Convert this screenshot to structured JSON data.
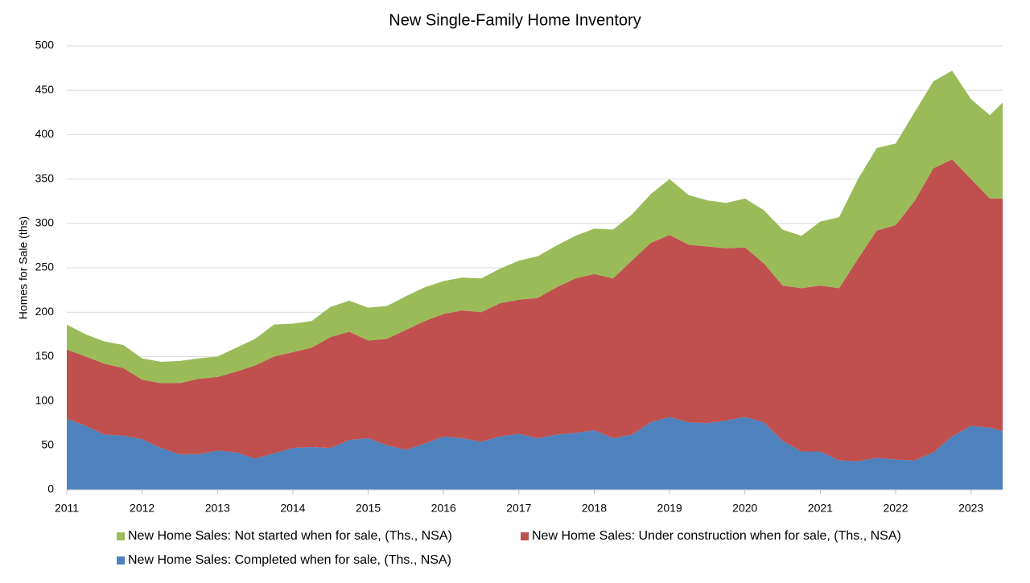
{
  "chart_data": {
    "type": "stacked_area",
    "title": "New Single-Family Home Inventory",
    "y_label": "Homes for Sale (ths)",
    "x": [
      2011,
      2011.25,
      2011.5,
      2011.75,
      2012,
      2012.25,
      2012.5,
      2012.75,
      2013,
      2013.25,
      2013.5,
      2013.75,
      2014,
      2014.25,
      2014.5,
      2014.75,
      2015,
      2015.25,
      2015.5,
      2015.75,
      2016,
      2016.25,
      2016.5,
      2016.75,
      2017,
      2017.25,
      2017.5,
      2017.75,
      2018,
      2018.25,
      2018.5,
      2018.75,
      2019,
      2019.25,
      2019.5,
      2019.75,
      2020,
      2020.25,
      2020.5,
      2020.75,
      2021,
      2021.25,
      2021.5,
      2021.75,
      2022,
      2022.25,
      2022.5,
      2022.75,
      2023,
      2023.25,
      2023.42
    ],
    "series": [
      {
        "name": "New Home Sales: Completed when for sale, (Ths., NSA)",
        "color": "#4f81bd",
        "values": [
          80,
          72,
          62,
          61,
          57,
          47,
          40,
          40,
          44,
          42,
          35,
          41,
          47,
          48,
          47,
          56,
          58,
          50,
          45,
          52,
          60,
          58,
          54,
          60,
          63,
          58,
          62,
          64,
          67,
          58,
          62,
          76,
          82,
          76,
          75,
          78,
          82,
          76,
          55,
          43,
          43,
          33,
          32,
          36,
          34,
          33,
          42,
          60,
          72,
          70,
          66
        ]
      },
      {
        "name": "New Home Sales: Under construction when for sale, (Ths., NSA)",
        "color": "#c0504d",
        "values": [
          78,
          78,
          80,
          76,
          67,
          73,
          80,
          85,
          83,
          91,
          105,
          109,
          108,
          112,
          125,
          122,
          110,
          120,
          135,
          138,
          138,
          144,
          146,
          150,
          151,
          158,
          166,
          174,
          176,
          180,
          196,
          202,
          205,
          200,
          199,
          194,
          191,
          179,
          175,
          184,
          187,
          194,
          228,
          256,
          264,
          292,
          320,
          312,
          278,
          258,
          262
        ]
      },
      {
        "name": "New Home Sales: Not started when for sale, (Ths., NSA)",
        "color": "#9bbb59",
        "values": [
          28,
          25,
          25,
          26,
          24,
          24,
          25,
          23,
          23,
          27,
          30,
          36,
          32,
          30,
          34,
          35,
          37,
          37,
          38,
          38,
          37,
          37,
          38,
          39,
          44,
          47,
          47,
          48,
          51,
          55,
          52,
          55,
          63,
          56,
          52,
          51,
          55,
          60,
          63,
          59,
          72,
          80,
          90,
          93,
          92,
          100,
          98,
          100,
          90,
          94,
          108
        ]
      }
    ],
    "xlim": [
      2011,
      2023.42
    ],
    "xticks": [
      2011,
      2012,
      2013,
      2014,
      2015,
      2016,
      2017,
      2018,
      2019,
      2020,
      2021,
      2022,
      2023
    ],
    "ylim": [
      0,
      500
    ],
    "yticks": [
      0,
      50,
      100,
      150,
      200,
      250,
      300,
      350,
      400,
      450,
      500
    ],
    "grid": true,
    "legend": "bottom"
  }
}
